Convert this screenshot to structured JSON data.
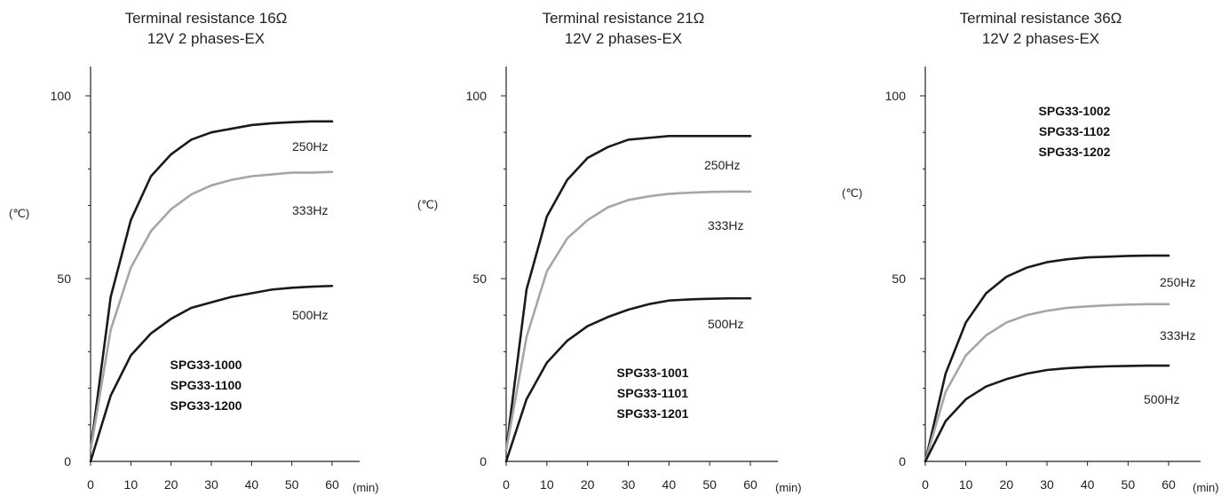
{
  "chart_data": [
    {
      "type": "line",
      "title": "Terminal resistance 16Ω",
      "subtitle": "12V 2 phases-EX",
      "ylabel": "(℃)",
      "xlabel": "(min)",
      "xlim": [
        0,
        60
      ],
      "ylim": [
        0,
        100
      ],
      "xticks": [
        0,
        10,
        20,
        30,
        40,
        50,
        60
      ],
      "yticks": [
        0,
        50,
        100
      ],
      "models": [
        "SPG33-1000",
        "SPG33-1100",
        "SPG33-1200"
      ],
      "colors": {
        "250Hz": "#1a1a1a",
        "333Hz": "#a6a6a6",
        "500Hz": "#1a1a1a"
      },
      "x": [
        0,
        5,
        10,
        15,
        20,
        25,
        30,
        35,
        40,
        45,
        50,
        55,
        60
      ],
      "series": [
        {
          "name": "250Hz",
          "values": [
            3,
            45,
            66,
            78,
            84,
            88,
            90,
            91,
            92,
            92.5,
            92.8,
            93,
            93
          ]
        },
        {
          "name": "333Hz",
          "values": [
            3,
            36,
            53,
            63,
            69,
            73,
            75.5,
            77,
            78,
            78.5,
            79,
            79,
            79.2
          ]
        },
        {
          "name": "500Hz",
          "values": [
            0,
            18,
            29,
            35,
            39,
            42,
            43.5,
            45,
            46,
            47,
            47.5,
            47.8,
            48
          ]
        }
      ]
    },
    {
      "type": "line",
      "title": "Terminal resistance 21Ω",
      "subtitle": "12V 2 phases-EX",
      "ylabel": "(℃)",
      "xlabel": "(min)",
      "xlim": [
        0,
        60
      ],
      "ylim": [
        0,
        100
      ],
      "xticks": [
        0,
        10,
        20,
        30,
        40,
        50,
        60
      ],
      "yticks": [
        0,
        50,
        100
      ],
      "models": [
        "SPG33-1001",
        "SPG33-1101",
        "SPG33-1201"
      ],
      "colors": {
        "250Hz": "#1a1a1a",
        "333Hz": "#a6a6a6",
        "500Hz": "#1a1a1a"
      },
      "x": [
        0,
        5,
        10,
        15,
        20,
        25,
        30,
        35,
        40,
        45,
        50,
        55,
        60
      ],
      "series": [
        {
          "name": "250Hz",
          "values": [
            3,
            47,
            67,
            77,
            83,
            86,
            88,
            88.5,
            89,
            89,
            89,
            89,
            89
          ]
        },
        {
          "name": "333Hz",
          "values": [
            3,
            34,
            52,
            61,
            66,
            69.5,
            71.5,
            72.5,
            73.2,
            73.5,
            73.7,
            73.8,
            73.8
          ]
        },
        {
          "name": "500Hz",
          "values": [
            0,
            17,
            27,
            33,
            37,
            39.5,
            41.5,
            43,
            44,
            44.3,
            44.5,
            44.6,
            44.6
          ]
        }
      ]
    },
    {
      "type": "line",
      "title": "Terminal resistance 36Ω",
      "subtitle": "12V 2 phases-EX",
      "ylabel": "(℃)",
      "xlabel": "(min)",
      "xlim": [
        0,
        60
      ],
      "ylim": [
        0,
        100
      ],
      "xticks": [
        0,
        10,
        20,
        30,
        40,
        50,
        60
      ],
      "yticks": [
        0,
        50,
        100
      ],
      "models": [
        "SPG33-1002",
        "SPG33-1102",
        "SPG33-1202"
      ],
      "colors": {
        "250Hz": "#1a1a1a",
        "333Hz": "#a6a6a6",
        "500Hz": "#1a1a1a"
      },
      "x": [
        0,
        5,
        10,
        15,
        20,
        25,
        30,
        35,
        40,
        45,
        50,
        55,
        60
      ],
      "series": [
        {
          "name": "250Hz",
          "values": [
            0,
            24,
            38,
            46,
            50.5,
            53,
            54.5,
            55.3,
            55.8,
            56,
            56.2,
            56.3,
            56.3
          ]
        },
        {
          "name": "333Hz",
          "values": [
            0,
            19,
            29,
            34.5,
            38,
            40,
            41.2,
            42,
            42.4,
            42.7,
            42.9,
            43,
            43
          ]
        },
        {
          "name": "500Hz",
          "values": [
            0,
            11,
            17,
            20.5,
            22.5,
            24,
            25,
            25.5,
            25.8,
            26,
            26.1,
            26.2,
            26.2
          ]
        }
      ]
    }
  ]
}
